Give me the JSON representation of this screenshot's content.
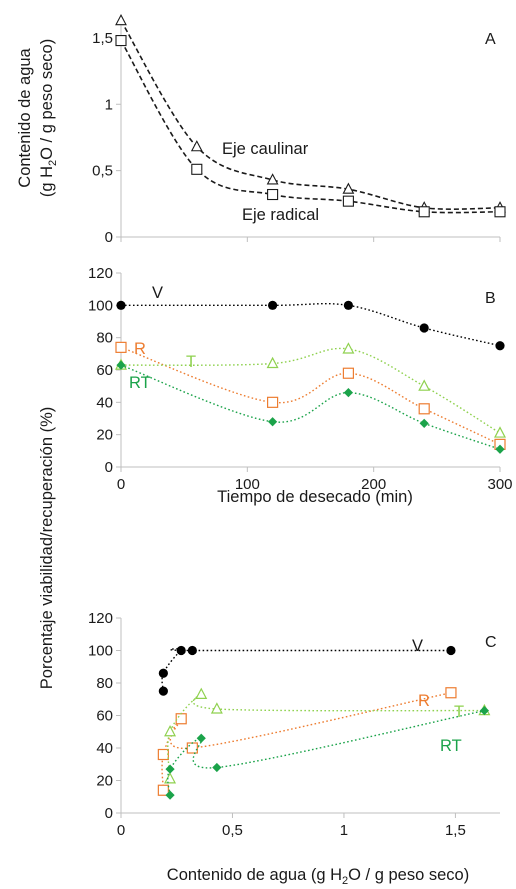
{
  "chart_data": [
    {
      "panel": "A",
      "type": "line",
      "ylabel_line1": "Contenido de agua",
      "ylabel_line2_parts": [
        "(g H",
        "2",
        "O / g peso seco)"
      ],
      "xlim": [
        0,
        300
      ],
      "ylim": [
        0,
        1.65
      ],
      "yticks": [
        0,
        0.5,
        1,
        1.5
      ],
      "ytick_labels": [
        "0",
        "0,5",
        "1",
        "1,5"
      ],
      "xticks": [
        0,
        100,
        200,
        300
      ],
      "xtick_labels": [
        "0",
        "100",
        "200",
        "300"
      ],
      "series": [
        {
          "name": "Eje caulinar",
          "marker": "triangle",
          "color": "#1a1a1a",
          "x": [
            0,
            60,
            120,
            180,
            240,
            300
          ],
          "y": [
            1.63,
            0.68,
            0.43,
            0.36,
            0.22,
            0.22
          ]
        },
        {
          "name": "Eje radical",
          "marker": "square",
          "color": "#1a1a1a",
          "x": [
            0,
            60,
            120,
            180,
            240,
            300
          ],
          "y": [
            1.48,
            0.51,
            0.32,
            0.27,
            0.19,
            0.19
          ]
        }
      ]
    },
    {
      "panel": "B",
      "type": "line",
      "xlabel": "Tiempo de desecado (min)",
      "ylabel": "Porcentaje viabilidad/recuperación (%)",
      "xlim": [
        0,
        300
      ],
      "ylim": [
        0,
        120
      ],
      "xticks": [
        0,
        100,
        200,
        300
      ],
      "xtick_labels": [
        "0",
        "100",
        "200",
        "300"
      ],
      "yticks": [
        0,
        20,
        40,
        60,
        80,
        100,
        120
      ],
      "ytick_labels": [
        "0",
        "20",
        "40",
        "60",
        "80",
        "100",
        "120"
      ],
      "series": [
        {
          "name": "V",
          "marker": "circle",
          "color": "#000000",
          "x": [
            0,
            120,
            180,
            240,
            300
          ],
          "y": [
            100,
            100,
            100,
            86,
            75
          ]
        },
        {
          "name": "R",
          "marker": "square-open",
          "color": "#ED7D31",
          "x": [
            0,
            120,
            180,
            240,
            300
          ],
          "y": [
            74,
            40,
            58,
            36,
            14
          ]
        },
        {
          "name": "T",
          "marker": "triangle-open",
          "color": "#8FD14F",
          "x": [
            0,
            120,
            180,
            240,
            300
          ],
          "y": [
            63,
            64,
            73,
            50,
            21
          ]
        },
        {
          "name": "RT",
          "marker": "diamond",
          "color": "#1BA34A",
          "x": [
            0,
            120,
            180,
            240,
            300
          ],
          "y": [
            63,
            28,
            46,
            27,
            11
          ]
        }
      ]
    },
    {
      "panel": "C",
      "type": "line",
      "xlabel_parts": [
        "Contenido de agua (g H",
        "2",
        "O / g peso seco)"
      ],
      "xlim": [
        0,
        1.7
      ],
      "ylim": [
        0,
        120
      ],
      "xticks": [
        0,
        0.5,
        1,
        1.5
      ],
      "xtick_labels": [
        "0",
        "0,5",
        "1",
        "1,5"
      ],
      "yticks": [
        0,
        20,
        40,
        60,
        80,
        100,
        120
      ],
      "ytick_labels": [
        "0",
        "20",
        "40",
        "60",
        "80",
        "100",
        "120"
      ],
      "series": [
        {
          "name": "V",
          "marker": "circle",
          "color": "#000000",
          "x": [
            0.19,
            0.19,
            0.27,
            0.32,
            1.48
          ],
          "y": [
            75,
            86,
            100,
            100,
            100
          ]
        },
        {
          "name": "R",
          "marker": "square-open",
          "color": "#ED7D31",
          "x": [
            0.19,
            0.19,
            0.27,
            0.32,
            1.48
          ],
          "y": [
            14,
            36,
            58,
            40,
            74
          ]
        },
        {
          "name": "T",
          "marker": "triangle-open",
          "color": "#8FD14F",
          "x": [
            0.22,
            0.22,
            0.36,
            0.43,
            1.63
          ],
          "y": [
            21,
            50,
            73,
            64,
            63
          ]
        },
        {
          "name": "RT",
          "marker": "diamond",
          "color": "#1BA34A",
          "x": [
            0.22,
            0.22,
            0.36,
            0.43,
            1.63
          ],
          "y": [
            11,
            27,
            46,
            28,
            63
          ]
        }
      ]
    }
  ]
}
